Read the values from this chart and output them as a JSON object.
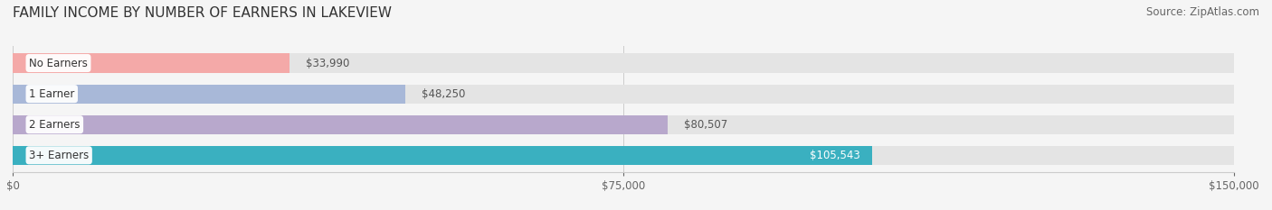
{
  "title": "FAMILY INCOME BY NUMBER OF EARNERS IN LAKEVIEW",
  "source": "Source: ZipAtlas.com",
  "categories": [
    "No Earners",
    "1 Earner",
    "2 Earners",
    "3+ Earners"
  ],
  "values": [
    33990,
    48250,
    80507,
    105543
  ],
  "bar_colors": [
    "#f4a9a8",
    "#a8b8d8",
    "#b8a8cc",
    "#3ab0c0"
  ],
  "value_labels": [
    "$33,990",
    "$48,250",
    "$80,507",
    "$105,543"
  ],
  "xlim": [
    0,
    150000
  ],
  "xticks": [
    0,
    75000,
    150000
  ],
  "xtick_labels": [
    "$0",
    "$75,000",
    "$150,000"
  ],
  "background_color": "#f5f5f5",
  "bar_background_color": "#e4e4e4",
  "title_fontsize": 11,
  "source_fontsize": 8.5,
  "bar_height": 0.62,
  "bar_label_fontsize": 8.5,
  "value_label_fontsize": 8.5,
  "tick_fontsize": 8.5
}
